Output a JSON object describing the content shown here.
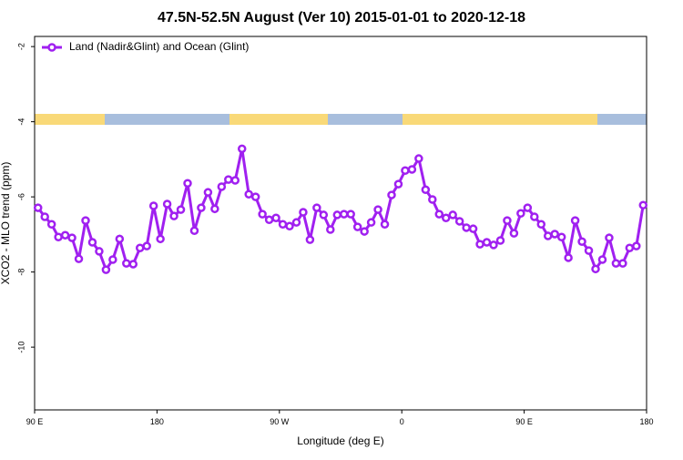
{
  "chart_data": {
    "type": "line",
    "title": "47.5N-52.5N August (Ver 10)   2015-01-01 to 2020-12-18",
    "xlabel": "Longitude (deg E)",
    "ylabel": "XCO2 - MLO trend (ppm)",
    "xlim": [
      90,
      540
    ],
    "ylim": [
      -11.67,
      -1.73
    ],
    "xticks": [
      {
        "value": 90,
        "label": "90 E"
      },
      {
        "value": 180,
        "label": "180"
      },
      {
        "value": 270,
        "label": "90 W"
      },
      {
        "value": 360,
        "label": "0"
      },
      {
        "value": 450,
        "label": "90 E"
      },
      {
        "value": 540,
        "label": "180"
      }
    ],
    "yticks": [
      -2,
      -4,
      -6,
      -8,
      -10
    ],
    "legend": "top-left",
    "x": [
      92.5,
      97.5,
      102.5,
      107.5,
      112.5,
      117.5,
      122.5,
      127.5,
      132.5,
      137.5,
      142.5,
      147.5,
      152.5,
      157.5,
      162.5,
      167.5,
      172.5,
      177.5,
      182.5,
      187.5,
      192.5,
      197.5,
      202.5,
      207.5,
      212.5,
      217.5,
      222.5,
      227.5,
      232.5,
      237.5,
      242.5,
      247.5,
      252.5,
      257.5,
      262.5,
      267.5,
      272.5,
      277.5,
      282.5,
      287.5,
      292.5,
      297.5,
      302.5,
      307.5,
      312.5,
      317.5,
      322.5,
      327.5,
      332.5,
      337.5,
      342.5,
      347.5,
      352.5,
      357.5,
      362.5,
      367.5,
      372.5,
      377.5,
      382.5,
      387.5,
      392.5,
      397.5,
      402.5,
      407.5,
      412.5,
      417.5,
      422.5,
      427.5,
      432.5,
      437.5,
      442.5,
      447.5,
      452.5,
      457.5,
      462.5,
      467.5,
      472.5,
      477.5,
      482.5,
      487.5,
      492.5,
      497.5,
      502.5,
      507.5,
      512.5,
      517.5,
      522.5,
      527.5,
      532.5,
      537.5
    ],
    "series": [
      {
        "name": "Land (Nadir&Glint) and Ocean (Glint)",
        "color": "#a020f0",
        "values": [
          -6.29,
          -6.53,
          -6.73,
          -7.07,
          -7.02,
          -7.09,
          -7.65,
          -6.63,
          -7.21,
          -7.45,
          -7.94,
          -7.67,
          -7.12,
          -7.77,
          -7.79,
          -7.36,
          -7.31,
          -6.24,
          -7.12,
          -6.19,
          -6.51,
          -6.34,
          -5.64,
          -6.9,
          -6.29,
          -5.88,
          -6.32,
          -5.73,
          -5.54,
          -5.56,
          -4.72,
          -5.93,
          -6.0,
          -6.46,
          -6.61,
          -6.56,
          -6.73,
          -6.78,
          -6.68,
          -6.41,
          -7.14,
          -6.29,
          -6.48,
          -6.87,
          -6.48,
          -6.46,
          -6.46,
          -6.8,
          -6.92,
          -6.68,
          -6.34,
          -6.73,
          -5.95,
          -5.66,
          -5.3,
          -5.27,
          -4.98,
          -5.81,
          -6.07,
          -6.46,
          -6.56,
          -6.48,
          -6.65,
          -6.82,
          -6.85,
          -7.26,
          -7.21,
          -7.28,
          -7.16,
          -6.63,
          -6.97,
          -6.44,
          -6.29,
          -6.53,
          -6.73,
          -7.04,
          -6.99,
          -7.07,
          -7.62,
          -6.63,
          -7.19,
          -7.43,
          -7.92,
          -7.67,
          -7.09,
          -7.77,
          -7.77,
          -7.36,
          -7.31,
          -6.22
        ]
      }
    ]
  }
}
